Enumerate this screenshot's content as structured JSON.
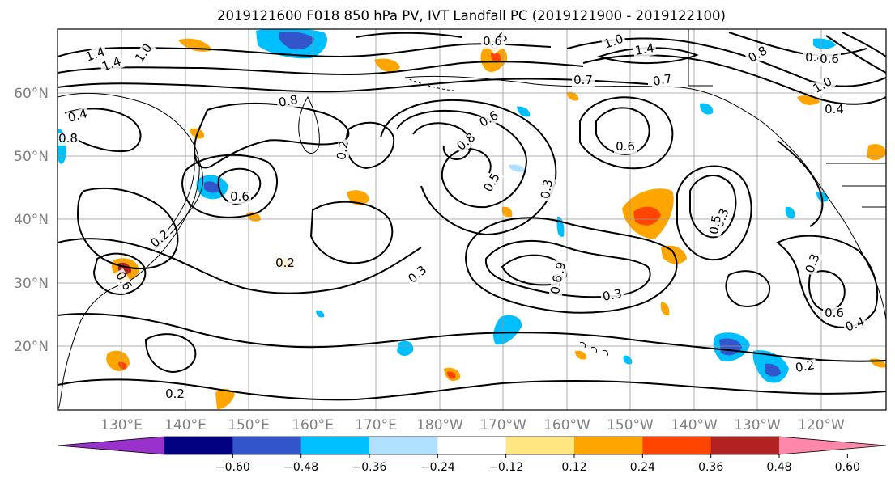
{
  "title": "2019121600 F018 850 hPa PV, IVT Landfall PC (2019121900 - 2019122100)",
  "map": {
    "lat_labels": [
      "60°N",
      "50°N",
      "40°N",
      "30°N",
      "20°N"
    ],
    "lon_labels": [
      "130°E",
      "140°E",
      "150°E",
      "160°E",
      "170°E",
      "180°W",
      "170°W",
      "160°W",
      "150°W",
      "140°W",
      "130°W",
      "120°W"
    ],
    "contour_labels": [
      {
        "text": "1.4"
      },
      {
        "text": "1.4"
      },
      {
        "text": "1.0"
      },
      {
        "text": "1.4"
      },
      {
        "text": "1.0"
      },
      {
        "text": "0.4"
      },
      {
        "text": "0.8"
      },
      {
        "text": "0.4"
      },
      {
        "text": "0.8"
      },
      {
        "text": "0.6"
      },
      {
        "text": "0.8"
      },
      {
        "text": "0.2"
      },
      {
        "text": "0.6"
      },
      {
        "text": "0.2"
      },
      {
        "text": "0.6"
      },
      {
        "text": "0.8"
      },
      {
        "text": "0.7"
      },
      {
        "text": "0.5"
      },
      {
        "text": "0.3"
      },
      {
        "text": "0.6"
      },
      {
        "text": "0.7"
      },
      {
        "text": "0.6"
      },
      {
        "text": "0.2"
      },
      {
        "text": "0.3"
      },
      {
        "text": "0.3"
      },
      {
        "text": "0.9"
      },
      {
        "text": "0.6"
      },
      {
        "text": "0.3"
      },
      {
        "text": "0.5"
      },
      {
        "text": "0.3"
      },
      {
        "text": "0.6"
      },
      {
        "text": "0.4"
      },
      {
        "text": "0.2"
      },
      {
        "text": "0.2"
      },
      {
        "text": "0.4"
      },
      {
        "text": "0.6"
      },
      {
        "text": "1.0"
      },
      {
        "text": "0.6"
      }
    ]
  },
  "colorbar": {
    "ticks": [
      "−0.60",
      "−0.48",
      "−0.36",
      "−0.24",
      "−0.12",
      "0.12",
      "0.24",
      "0.36",
      "0.48",
      "0.60"
    ],
    "colors": [
      "#9932CC",
      "#000080",
      "#3355CC",
      "#00BFFF",
      "#B0E0FF",
      "#FFFFFF",
      "#FFE680",
      "#FFA500",
      "#FF4500",
      "#B22222",
      "#FF88AA"
    ]
  },
  "legend_colors": {
    "land_line": "#000000",
    "grid": "#999999",
    "label_text": "#808080"
  }
}
